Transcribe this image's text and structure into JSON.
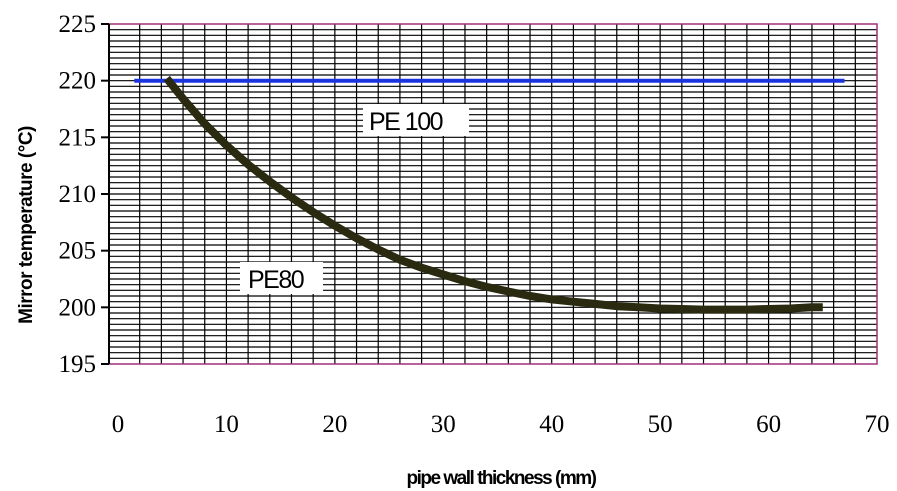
{
  "chart_data": {
    "type": "line",
    "xlabel": "pipe wall thickness  (mm)",
    "ylabel": "Mirror temperature (°C)",
    "xlim": [
      0,
      70
    ],
    "ylim": [
      195,
      225
    ],
    "xticks": [
      "0",
      "10",
      "20",
      "30",
      "40",
      "50",
      "60",
      "70"
    ],
    "yticks": [
      "195",
      "200",
      "205",
      "210",
      "215",
      "220",
      "225"
    ],
    "grid": true,
    "series": [
      {
        "name": "PE 100",
        "color": "#1a35e0",
        "x": [
          1.5,
          67
        ],
        "y": [
          220,
          220
        ]
      },
      {
        "name": "PE80",
        "color": "#2a2a10",
        "x": [
          4.5,
          6,
          8,
          10,
          12,
          14,
          16,
          18,
          20,
          22,
          24,
          26,
          28,
          30,
          32,
          34,
          36,
          38,
          40,
          42,
          44,
          46,
          48,
          50,
          52,
          54,
          56,
          58,
          60,
          62,
          64,
          65
        ],
        "y": [
          220.2,
          218.4,
          216.2,
          214.3,
          212.6,
          211.1,
          209.7,
          208.4,
          207.2,
          206.1,
          205.1,
          204.2,
          203.5,
          202.9,
          202.3,
          201.8,
          201.4,
          201.0,
          200.7,
          200.5,
          200.3,
          200.1,
          200.0,
          199.9,
          199.85,
          199.8,
          199.8,
          199.8,
          199.85,
          199.9,
          200.0,
          200.0
        ]
      }
    ]
  }
}
